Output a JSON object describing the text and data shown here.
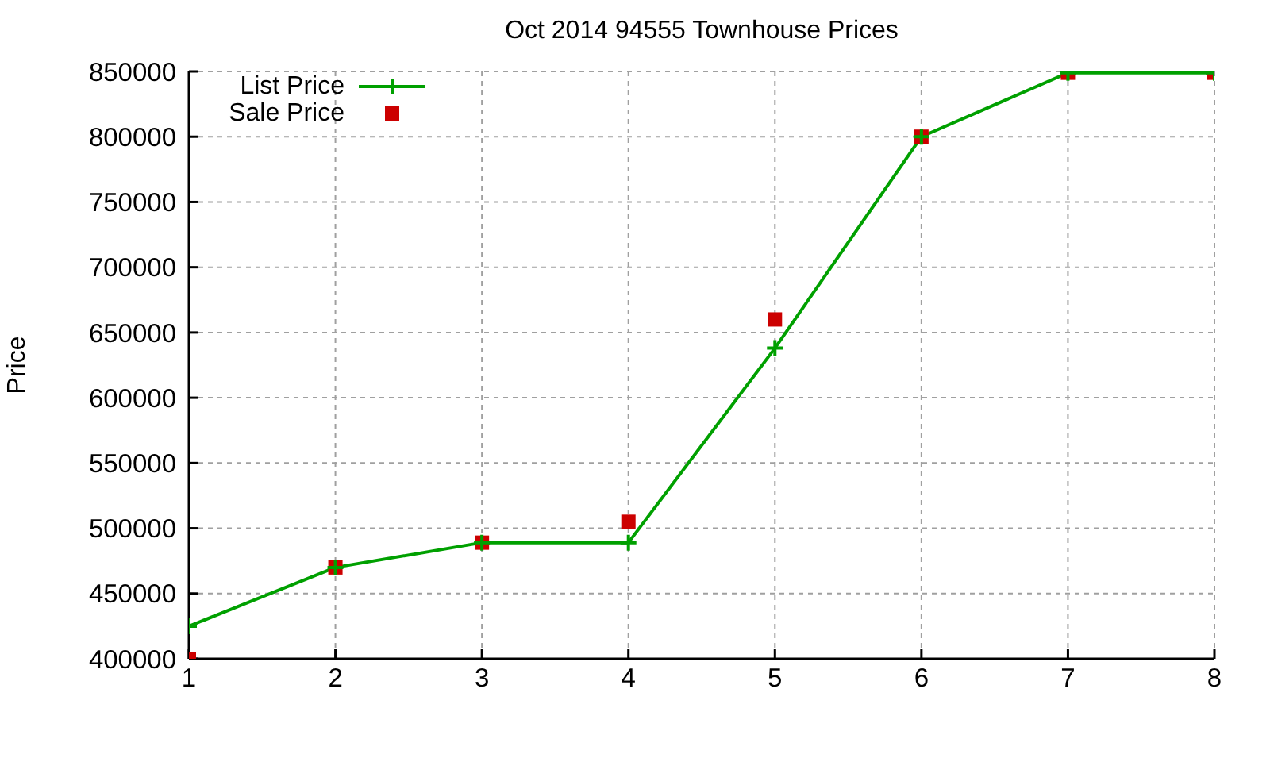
{
  "chart_data": {
    "type": "line",
    "title": "Oct 2014 94555 Townhouse Prices",
    "ylabel": "Price",
    "x": [
      1,
      2,
      3,
      4,
      5,
      6,
      7,
      8
    ],
    "series": [
      {
        "name": "List Price",
        "type": "line",
        "marker": "cross",
        "color": "#00a000",
        "values": [
          425000,
          470000,
          489000,
          489000,
          638000,
          800000,
          849000,
          849000
        ]
      },
      {
        "name": "Sale Price",
        "type": "scatter",
        "marker": "square",
        "color": "#cc0000",
        "values": [
          400000,
          470000,
          489000,
          505000,
          660000,
          800000,
          849000,
          849000
        ]
      }
    ],
    "xlim": [
      1,
      8
    ],
    "xticks": [
      1,
      2,
      3,
      4,
      5,
      6,
      7,
      8
    ],
    "ylim": [
      400000,
      850000
    ],
    "yticks": [
      400000,
      450000,
      500000,
      550000,
      600000,
      650000,
      700000,
      750000,
      800000,
      850000
    ],
    "grid": true,
    "legend": "top left"
  }
}
